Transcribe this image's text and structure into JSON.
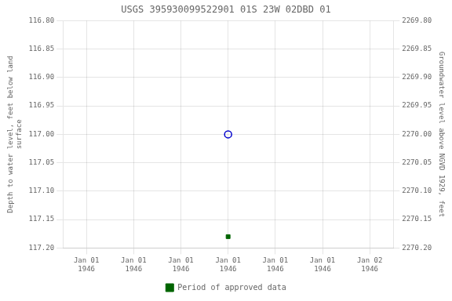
{
  "chart_data": {
    "type": "scatter",
    "title": "USGS 395930099522901 01S 23W 02DBD 01",
    "y_label": "Depth to water level, feet below land\nsurface",
    "y2_label": "Groundwater level above NGVD 1929, feet",
    "categories": [
      "Jan 01\n1946",
      "Jan 01\n1946",
      "Jan 01\n1946",
      "Jan 01\n1946",
      "Jan 01\n1946",
      "Jan 01\n1946",
      "Jan 02\n1946"
    ],
    "series": [
      {
        "color": "#0000cd",
        "marker": "circle",
        "values": [
          null,
          null,
          null,
          117.0,
          null,
          null,
          null
        ]
      },
      {
        "name": "Period of approved data",
        "color": "#006400",
        "marker": "square",
        "values": [
          null,
          null,
          null,
          117.18,
          null,
          null,
          null
        ]
      }
    ],
    "ylim": [
      117.2,
      116.8
    ],
    "yticks": [
      {
        "value": 116.8,
        "label": "116.80"
      },
      {
        "value": 116.85,
        "label": "116.85"
      },
      {
        "value": 116.9,
        "label": "116.90"
      },
      {
        "value": 116.95,
        "label": "116.95"
      },
      {
        "value": 117.0,
        "label": "117.00"
      },
      {
        "value": 117.05,
        "label": "117.05"
      },
      {
        "value": 117.1,
        "label": "117.10"
      },
      {
        "value": 117.15,
        "label": "117.15"
      },
      {
        "value": 117.2,
        "label": "117.20"
      }
    ],
    "y2lim": [
      2270.2,
      2269.8
    ],
    "y2ticks": [
      {
        "value": 2270.2,
        "label": "2270.20"
      },
      {
        "value": 2270.15,
        "label": "2270.15"
      },
      {
        "value": 2270.1,
        "label": "2270.10"
      },
      {
        "value": 2270.05,
        "label": "2270.05"
      },
      {
        "value": 2270.0,
        "label": "2270.00"
      },
      {
        "value": 2269.95,
        "label": "2269.95"
      },
      {
        "value": 2269.9,
        "label": "2269.90"
      },
      {
        "value": 2269.85,
        "label": "2269.85"
      },
      {
        "value": 2269.8,
        "label": "2269.80"
      }
    ],
    "grid": true,
    "legend": "bottom"
  }
}
